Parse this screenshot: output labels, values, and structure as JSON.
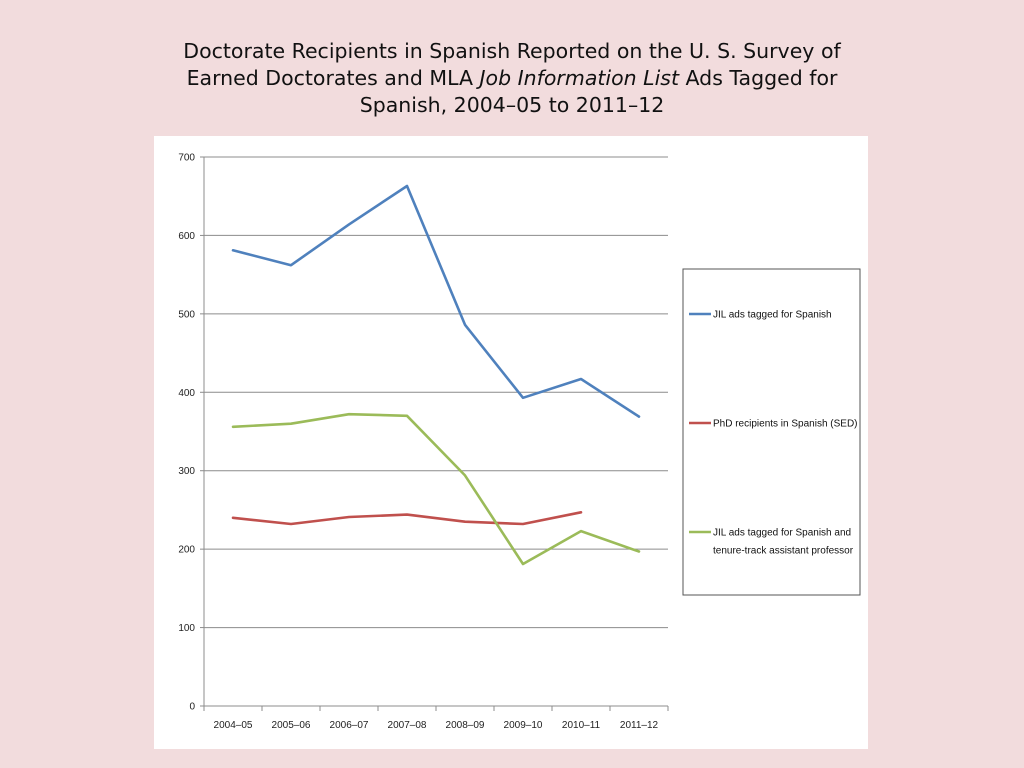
{
  "title": {
    "part1": "Doctorate Recipients in Spanish Reported on the U. S. Survey of Earned Doctorates and MLA ",
    "italic": "Job Information List",
    "part2": " Ads Tagged for Spanish, 2004–05 to 2011–12"
  },
  "chart_data": {
    "type": "line",
    "title": "Doctorate Recipients in Spanish Reported on the U. S. Survey of Earned Doctorates and MLA Job Information List Ads Tagged for Spanish, 2004–05 to 2011–12",
    "categories": [
      "2004–05",
      "2005–06",
      "2006–07",
      "2007–08",
      "2008–09",
      "2009–10",
      "2010–11",
      "2011–12"
    ],
    "ylim": [
      0,
      700
    ],
    "yticks": [
      0,
      100,
      200,
      300,
      400,
      500,
      600,
      700
    ],
    "grid": true,
    "legend_position": "right",
    "xlabel": "",
    "ylabel": "",
    "series": [
      {
        "name": "JIL ads tagged for Spanish",
        "legend_lines": [
          "JIL ads tagged for Spanish"
        ],
        "color": "#4f81bd",
        "values": [
          581,
          562,
          614,
          663,
          486,
          393,
          417,
          369
        ]
      },
      {
        "name": "PhD recipients in Spanish (SED)",
        "legend_lines": [
          "PhD recipients in Spanish (SED)"
        ],
        "color": "#c0504d",
        "values": [
          240,
          232,
          241,
          244,
          235,
          232,
          247,
          null
        ]
      },
      {
        "name": "JIL ads tagged for Spanish and tenure-track assistant professor",
        "legend_lines": [
          "JIL ads tagged for Spanish and",
          "tenure-track assistant professor"
        ],
        "color": "#9bbb59",
        "values": [
          356,
          360,
          372,
          370,
          294,
          181,
          223,
          197
        ]
      }
    ]
  }
}
